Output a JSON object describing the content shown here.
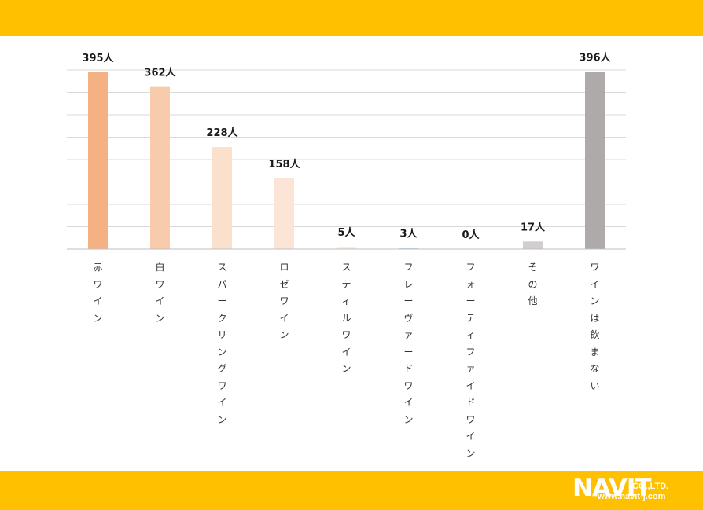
{
  "colors": {
    "banner": "#FFC000",
    "gridline": "#d9d9d9",
    "axis": "#bfbfbf",
    "label_text": "#333333",
    "value_text": "#1a1a1a"
  },
  "logo": {
    "brand": "NAVIT",
    "suffix": "CO.,LTD.",
    "url": "www.navit-j.com"
  },
  "chart_data": {
    "type": "bar",
    "title": "",
    "xlabel": "",
    "ylabel": "",
    "ylim": [
      0,
      400
    ],
    "grid": true,
    "legend": "none",
    "unit_suffix": "人",
    "categories": [
      "赤ワイン",
      "白ワイン",
      "スパークリングワイン",
      "ロゼワイン",
      "スティルワイン",
      "フレーヴァードワイン",
      "フォーティファイドワイン",
      "その他",
      "ワインは飲まない"
    ],
    "values": [
      395,
      362,
      228,
      158,
      5,
      3,
      0,
      17,
      396
    ],
    "value_labels": [
      "395人",
      "362人",
      "228人",
      "158人",
      "5人",
      "3人",
      "0人",
      "17人",
      "396人"
    ],
    "bar_colors": [
      "#F4B183",
      "#F8CBAD",
      "#FBE0CC",
      "#FCE4D6",
      "#FDE9DD",
      "#BDD7EE",
      "#F2F2F2",
      "#D0CECE",
      "#AEAAAA"
    ]
  }
}
